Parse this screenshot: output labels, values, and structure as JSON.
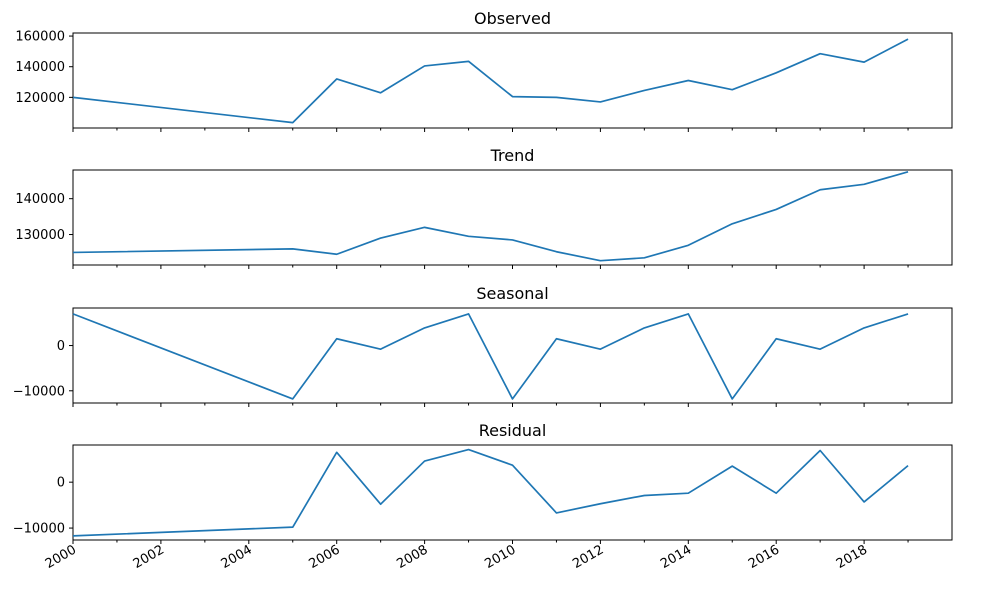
{
  "chart_data": {
    "type": "line",
    "x": [
      2000,
      2005,
      2006,
      2007,
      2008,
      2009,
      2010,
      2011,
      2012,
      2013,
      2014,
      2015,
      2016,
      2017,
      2018,
      2019
    ],
    "xlim": [
      2000,
      2020
    ],
    "x_tick_labels": [
      "2000",
      "2002",
      "2004",
      "2006",
      "2008",
      "2010",
      "2012",
      "2014",
      "2016",
      "2018"
    ],
    "x_tick_values": [
      2000,
      2002,
      2004,
      2006,
      2008,
      2010,
      2012,
      2014,
      2016,
      2018
    ],
    "grid": false,
    "panels": [
      {
        "title": "Observed",
        "ylim": [
          100000,
          162000
        ],
        "y_ticks": [
          120000,
          140000,
          160000
        ],
        "y_tick_labels": [
          "120000",
          "140000",
          "160000"
        ],
        "values": [
          120000,
          103500,
          132000,
          123000,
          140500,
          143500,
          120500,
          120000,
          117000,
          124500,
          131000,
          125000,
          136000,
          148500,
          143000,
          158000
        ]
      },
      {
        "title": "Trend",
        "ylim": [
          121500,
          148000
        ],
        "y_ticks": [
          130000,
          140000
        ],
        "y_tick_labels": [
          "130000",
          "140000"
        ],
        "values": [
          125000,
          126000,
          124500,
          129000,
          132000,
          129500,
          128500,
          125200,
          122700,
          123500,
          127000,
          133000,
          137000,
          142500,
          144000,
          147500
        ]
      },
      {
        "title": "Seasonal",
        "ylim": [
          -12700,
          8300
        ],
        "y_ticks": [
          -10000,
          0
        ],
        "y_tick_labels": [
          "−10000",
          "0"
        ],
        "values": [
          7000,
          -11800,
          1500,
          -800,
          3900,
          7000,
          -11800,
          1500,
          -800,
          3900,
          7000,
          -11800,
          1500,
          -800,
          3900,
          7000
        ]
      },
      {
        "title": "Residual",
        "ylim": [
          -12600,
          8100
        ],
        "y_ticks": [
          -10000,
          0
        ],
        "y_tick_labels": [
          "−10000",
          "0"
        ],
        "values": [
          -11700,
          -9800,
          6500,
          -4800,
          4600,
          7100,
          3700,
          -6700,
          -4700,
          -2900,
          -2400,
          3500,
          -2400,
          6900,
          -4300,
          3600
        ]
      }
    ]
  }
}
